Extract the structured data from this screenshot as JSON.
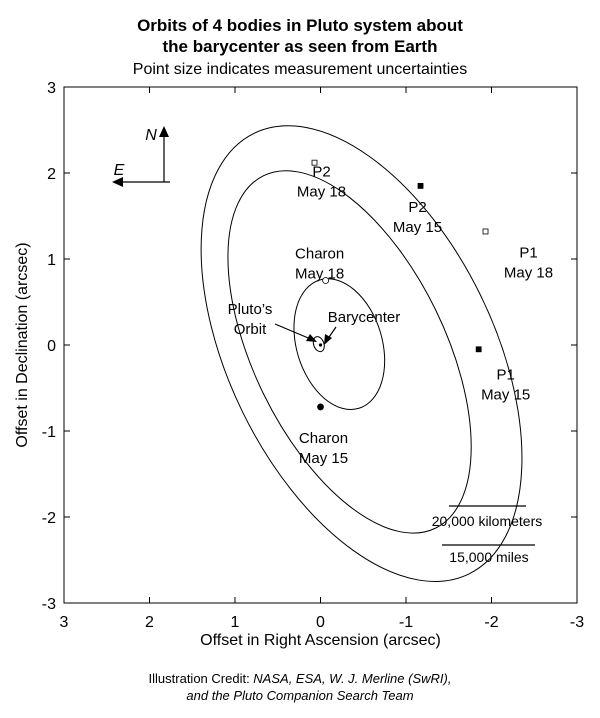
{
  "chart_data": {
    "type": "scatter",
    "title_line1": "Orbits of 4 bodies in Pluto system about",
    "title_line2": "the barycenter as seen from Earth",
    "subtitle": "Point size indicates measurement uncertainties",
    "xlabel": "Offset in Right Ascension (arcsec)",
    "ylabel": "Offset in Declination (arcsec)",
    "xlim": [
      3,
      -3
    ],
    "ylim": [
      -3,
      3
    ],
    "x_ticks": [
      "3",
      "2",
      "1",
      "0",
      "-1",
      "-2",
      "-3"
    ],
    "y_ticks": [
      "3",
      "2",
      "1",
      "0",
      "-1",
      "-2",
      "-3"
    ],
    "grid": false,
    "orbits": [
      {
        "name": "P1 orbit",
        "center": [
          -0.48,
          -0.1
        ],
        "semi_axes": [
          1.55,
          2.85
        ],
        "tilt_deg": -26
      },
      {
        "name": "P2 orbit",
        "center": [
          -0.34,
          -0.08
        ],
        "semi_axes": [
          1.12,
          2.28
        ],
        "tilt_deg": -26
      },
      {
        "name": "Charon orbit",
        "center": [
          -0.22,
          0.01
        ],
        "semi_axes": [
          0.5,
          0.78
        ],
        "tilt_deg": -17
      },
      {
        "name": "Pluto orbit",
        "center": [
          0.02,
          0.01
        ],
        "semi_axes": [
          0.06,
          0.09
        ],
        "tilt_deg": -20
      }
    ],
    "points": [
      {
        "label_lines": [
          "P2",
          "May 18"
        ],
        "x": 0.07,
        "y": 2.12,
        "marker": "open-square"
      },
      {
        "label_lines": [
          "P2",
          "May 15"
        ],
        "x": -1.17,
        "y": 1.85,
        "marker": "filled-square"
      },
      {
        "label_lines": [
          "P1",
          "May 18"
        ],
        "x": -1.93,
        "y": 1.32,
        "marker": "open-square"
      },
      {
        "label_lines": [
          "P1",
          "May 15"
        ],
        "x": -1.85,
        "y": -0.05,
        "marker": "filled-square"
      },
      {
        "label_lines": [
          "Charon",
          "May 18"
        ],
        "x": -0.06,
        "y": 0.75,
        "marker": "open-circle"
      },
      {
        "label_lines": [
          "Charon",
          "May 15"
        ],
        "x": 0.0,
        "y": -0.72,
        "marker": "filled-circle"
      }
    ],
    "annotations": {
      "pluto_label_lines": [
        "Pluto’s",
        "Orbit"
      ],
      "barycenter_label": "Barycenter",
      "north": "N",
      "east": "E",
      "scale_km": "20,000 kilometers",
      "scale_miles": "15,000 miles"
    }
  },
  "credit": {
    "prefix": "Illustration Credit: ",
    "line1_italic": "NASA, ESA, W. J. Merline (SwRI),",
    "line2_italic": "and the Pluto Companion Search Team"
  }
}
